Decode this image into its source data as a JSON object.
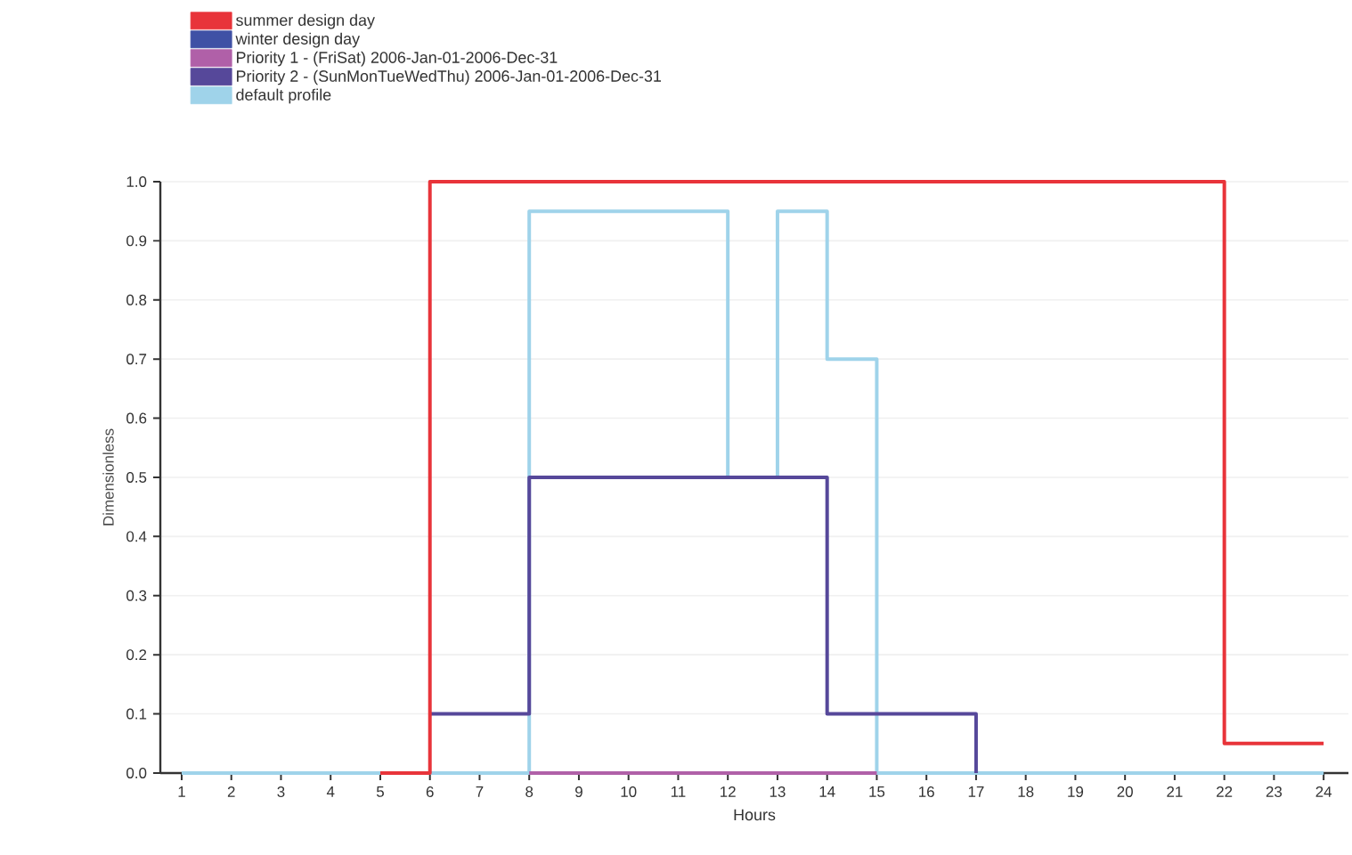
{
  "chart_data": {
    "type": "step",
    "xlabel": "Hours",
    "ylabel": "Dimensionless",
    "x": [
      1,
      2,
      3,
      4,
      5,
      6,
      7,
      8,
      9,
      10,
      11,
      12,
      13,
      14,
      15,
      16,
      17,
      18,
      19,
      20,
      21,
      22,
      23,
      24
    ],
    "series": [
      {
        "name": "summer design day",
        "color": "#e8343a",
        "values": [
          null,
          null,
          null,
          null,
          0,
          1,
          1,
          1,
          1,
          1,
          1,
          1,
          1,
          1,
          1,
          1,
          1,
          1,
          1,
          1,
          1,
          0.05,
          0.05,
          0.05
        ]
      },
      {
        "name": "winter design day",
        "color": "#3f51a5",
        "values": [
          null,
          null,
          null,
          null,
          null,
          null,
          null,
          null,
          null,
          null,
          null,
          null,
          null,
          null,
          null,
          null,
          null,
          null,
          null,
          null,
          null,
          null,
          null,
          null
        ]
      },
      {
        "name": "Priority 1 - (FriSat) 2006-Jan-01-2006-Dec-31",
        "color": "#b060a8",
        "values": [
          null,
          null,
          null,
          null,
          null,
          null,
          null,
          0,
          0,
          0,
          0,
          0,
          0,
          0,
          0,
          null,
          null,
          null,
          null,
          null,
          null,
          null,
          null,
          null
        ]
      },
      {
        "name": "Priority 2 - (SunMonTueWedThu) 2006-Jan-01-2006-Dec-31",
        "color": "#56489a",
        "values": [
          null,
          null,
          null,
          null,
          null,
          0.1,
          0.1,
          0.5,
          0.5,
          0.5,
          0.5,
          0.5,
          0.5,
          0.1,
          0.1,
          0.1,
          0,
          null,
          null,
          null,
          null,
          null,
          null,
          null
        ]
      },
      {
        "name": "default profile",
        "color": "#9fd3ea",
        "values": [
          0,
          0,
          0,
          0,
          0,
          0,
          0,
          0.95,
          0.95,
          0.95,
          0.95,
          0.5,
          0.95,
          0.7,
          0,
          0,
          0,
          0,
          0,
          0,
          0,
          0,
          0,
          0
        ]
      }
    ],
    "xlim": [
      0.57,
      24.5
    ],
    "xticks": [
      1,
      2,
      3,
      4,
      5,
      6,
      7,
      8,
      9,
      10,
      11,
      12,
      13,
      14,
      15,
      16,
      17,
      18,
      19,
      20,
      21,
      22,
      23,
      24
    ],
    "ylim": [
      0,
      1.0
    ],
    "yticks": [
      {
        "value": 0,
        "label": "0.0"
      },
      {
        "value": 0.1,
        "label": "0.1"
      },
      {
        "value": 0.2,
        "label": "0.2"
      },
      {
        "value": 0.3,
        "label": "0.3"
      },
      {
        "value": 0.4,
        "label": "0.4"
      },
      {
        "value": 0.5,
        "label": "0.5"
      },
      {
        "value": 0.6,
        "label": "0.6"
      },
      {
        "value": 0.7,
        "label": "0.7"
      },
      {
        "value": 0.8,
        "label": "0.8"
      },
      {
        "value": 0.9,
        "label": "0.9"
      },
      {
        "value": 1.0,
        "label": "1.0"
      }
    ],
    "grid": "y",
    "legend": "top left",
    "marker": "none",
    "line_style": "solid"
  }
}
